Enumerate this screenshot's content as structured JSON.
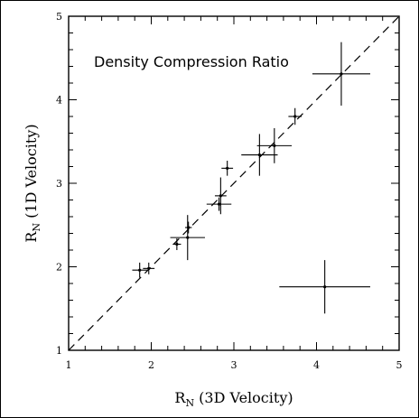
{
  "chart_data": {
    "type": "scatter",
    "title": "Density Compression Ratio",
    "xlabel": {
      "main": "R",
      "sub": "N",
      "rest": " (3D Velocity)"
    },
    "ylabel": {
      "main": "R",
      "sub": "N",
      "rest": " (1D Velocity)"
    },
    "xlim": [
      1,
      5
    ],
    "ylim": [
      1,
      5
    ],
    "xticks": [
      "1",
      "2",
      "3",
      "4",
      "5"
    ],
    "yticks": [
      "1",
      "2",
      "3",
      "4",
      "5"
    ],
    "grid": false,
    "reference_line": {
      "style": "dashed",
      "from": [
        1,
        1
      ],
      "to": [
        5,
        5
      ]
    },
    "points": [
      {
        "x": 1.86,
        "y": 1.96,
        "xerr": 0.09,
        "yerr": 0.09
      },
      {
        "x": 1.97,
        "y": 1.98,
        "xerr": 0.07,
        "yerr": 0.07
      },
      {
        "x": 2.31,
        "y": 2.27,
        "xerr": 0.05,
        "yerr": 0.07
      },
      {
        "x": 2.45,
        "y": 2.47,
        "xerr": 0.04,
        "yerr": 0.07
      },
      {
        "x": 2.44,
        "y": 2.35,
        "xerr": 0.21,
        "yerr": 0.27
      },
      {
        "x": 2.82,
        "y": 2.75,
        "xerr": 0.15,
        "yerr": 0.08
      },
      {
        "x": 2.84,
        "y": 2.85,
        "xerr": 0.07,
        "yerr": 0.22
      },
      {
        "x": 2.92,
        "y": 3.18,
        "xerr": 0.07,
        "yerr": 0.09
      },
      {
        "x": 3.31,
        "y": 3.34,
        "xerr": 0.22,
        "yerr": 0.25
      },
      {
        "x": 3.49,
        "y": 3.45,
        "xerr": 0.21,
        "yerr": 0.21
      },
      {
        "x": 3.74,
        "y": 3.8,
        "xerr": 0.08,
        "yerr": 0.1
      },
      {
        "x": 4.3,
        "y": 4.31,
        "xerr": 0.35,
        "yerr": 0.38
      },
      {
        "x": 4.1,
        "y": 1.76,
        "xerr": 0.55,
        "yerr": 0.32
      }
    ]
  }
}
